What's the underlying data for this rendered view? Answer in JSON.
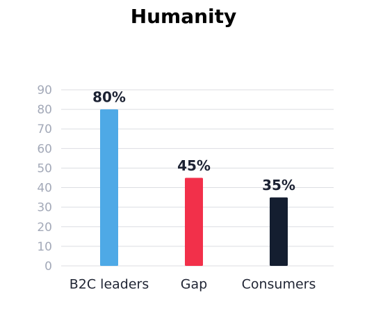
{
  "chart_data": {
    "type": "bar",
    "title": "Humanity",
    "categories": [
      "B2C leaders",
      "Gap",
      "Consumers"
    ],
    "values": [
      80,
      45,
      35
    ],
    "value_labels": [
      "80%",
      "45%",
      "35%"
    ],
    "colors": [
      "#4ea9e6",
      "#f2304a",
      "#141e30"
    ],
    "ylim": [
      0,
      90
    ],
    "yticks": [
      0,
      10,
      20,
      30,
      40,
      50,
      60,
      70,
      80,
      90
    ],
    "grid": true
  }
}
